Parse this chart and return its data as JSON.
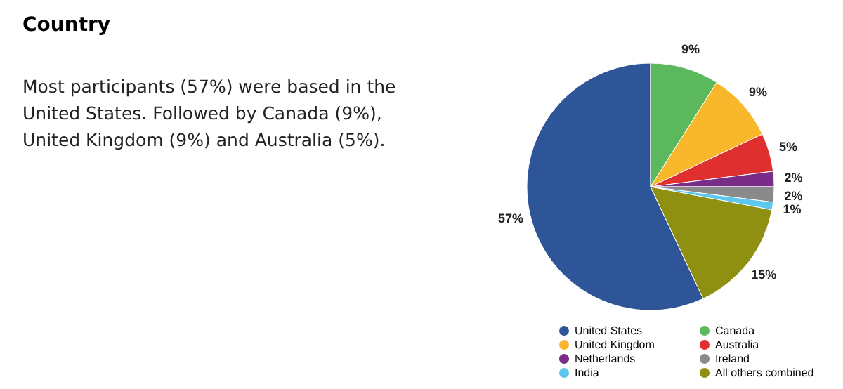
{
  "chart_data": {
    "type": "pie",
    "title": "Country",
    "annotations": [
      "Most participants (57%) were based in the United States. Followed by Canada (9%), United Kingdom (9%) and Australia (5%)."
    ],
    "categories": [
      "United States",
      "Canada",
      "United Kingdom",
      "Australia",
      "Netherlands",
      "Ireland",
      "India",
      "All others combined"
    ],
    "values": [
      57,
      9,
      9,
      5,
      2,
      2,
      1,
      15
    ],
    "value_labels": [
      "57%",
      "9%",
      "9%",
      "5%",
      "2%",
      "2%",
      "1%",
      "15%"
    ],
    "colors": [
      "#2e5597",
      "#5cb85c",
      "#f9b82c",
      "#e02f2f",
      "#7a2d88",
      "#8a8a8a",
      "#5cc8f0",
      "#8f8f12"
    ],
    "legend": "bottom"
  }
}
